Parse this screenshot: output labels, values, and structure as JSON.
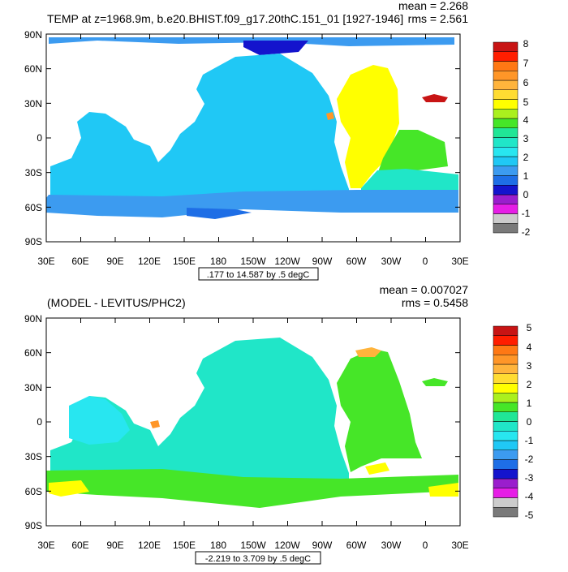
{
  "colors": {
    "palette": [
      "#7a7a7a",
      "#cccccc",
      "#e61ee6",
      "#9a1ecd",
      "#1414cd",
      "#1e6ee6",
      "#3c9bf0",
      "#20c8f5",
      "#28e6f0",
      "#20e6c8",
      "#20e696",
      "#46e628",
      "#aaf01e",
      "#ffff00",
      "#ffdc32",
      "#ffb43c",
      "#ff9628",
      "#ff7814",
      "#ff1e00",
      "#c81414"
    ],
    "land": "#ffffff"
  },
  "panels": [
    {
      "title_left": "TEMP at z=1968.9m, b.e20.BHIST.f09_g17.20thC.151_01 [1927-1946]",
      "mean_label": "mean = 2.268",
      "rms_label": "rms = 2.561",
      "range_label": ".177 to 14.587 by .5 degC",
      "lat_labels": [
        "90N",
        "60N",
        "30N",
        "0",
        "30S",
        "60S",
        "90S"
      ],
      "lon_labels": [
        "30E",
        "60E",
        "90E",
        "120E",
        "150E",
        "180",
        "150W",
        "120W",
        "90W",
        "60W",
        "30W",
        "0",
        "30E"
      ],
      "colorbar_labels": [
        "8",
        "7",
        "6",
        "5",
        "4",
        "3",
        "2",
        "1",
        "0",
        "-1",
        "-2"
      ]
    },
    {
      "title_left": "(MODEL - LEVITUS/PHC2)",
      "mean_label": "mean = 0.007027",
      "rms_label": "rms = 0.5458",
      "range_label": "-2.219 to 3.709 by .5 degC",
      "lat_labels": [
        "90N",
        "60N",
        "30N",
        "0",
        "30S",
        "60S",
        "90S"
      ],
      "lon_labels": [
        "30E",
        "60E",
        "90E",
        "120E",
        "150E",
        "180",
        "150W",
        "120W",
        "90W",
        "60W",
        "30W",
        "0",
        "30E"
      ],
      "colorbar_labels": [
        "5",
        "4",
        "3",
        "2",
        "1",
        "0",
        "-1",
        "-2",
        "-3",
        "-4",
        "-5"
      ]
    }
  ]
}
